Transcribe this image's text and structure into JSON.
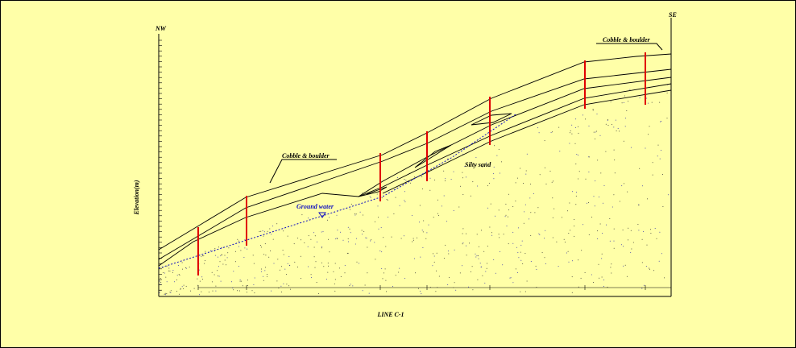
{
  "header": {
    "left": "NW",
    "right": "SE"
  },
  "axis_label": "Elevation(m)",
  "annotations": {
    "cobble_left": "Cobble & boulder",
    "cobble_right": "Cobble & boulder",
    "silty_sand": "Silty sand",
    "ground_water": "Ground water"
  },
  "caption": "LINE C-1"
}
